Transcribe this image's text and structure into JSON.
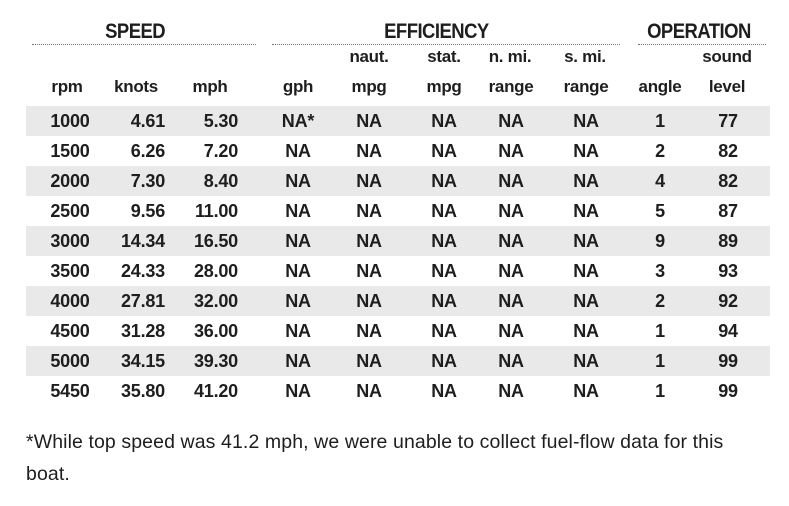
{
  "groups": {
    "speed": "SPEED",
    "efficiency": "EFFICIENCY",
    "operation": "OPERATION"
  },
  "headers": {
    "rpm": [
      "",
      "rpm"
    ],
    "knots": [
      "",
      "knots"
    ],
    "mph": [
      "",
      "mph"
    ],
    "gph": [
      "",
      "gph"
    ],
    "naut_mpg": [
      "naut.",
      "mpg"
    ],
    "stat_mpg": [
      "stat.",
      "mpg"
    ],
    "nmi_range": [
      "n. mi.",
      "range"
    ],
    "smi_range": [
      "s. mi.",
      "range"
    ],
    "angle": [
      "",
      "angle"
    ],
    "sound": [
      "sound",
      "level"
    ]
  },
  "rows": [
    [
      "1000",
      "4.61",
      "5.30",
      "NA*",
      "NA",
      "NA",
      "NA",
      "NA",
      "1",
      "77"
    ],
    [
      "1500",
      "6.26",
      "7.20",
      "NA",
      "NA",
      "NA",
      "NA",
      "NA",
      "2",
      "82"
    ],
    [
      "2000",
      "7.30",
      "8.40",
      "NA",
      "NA",
      "NA",
      "NA",
      "NA",
      "4",
      "82"
    ],
    [
      "2500",
      "9.56",
      "11.00",
      "NA",
      "NA",
      "NA",
      "NA",
      "NA",
      "5",
      "87"
    ],
    [
      "3000",
      "14.34",
      "16.50",
      "NA",
      "NA",
      "NA",
      "NA",
      "NA",
      "9",
      "89"
    ],
    [
      "3500",
      "24.33",
      "28.00",
      "NA",
      "NA",
      "NA",
      "NA",
      "NA",
      "3",
      "93"
    ],
    [
      "4000",
      "27.81",
      "32.00",
      "NA",
      "NA",
      "NA",
      "NA",
      "NA",
      "2",
      "92"
    ],
    [
      "4500",
      "31.28",
      "36.00",
      "NA",
      "NA",
      "NA",
      "NA",
      "NA",
      "1",
      "94"
    ],
    [
      "5000",
      "34.15",
      "39.30",
      "NA",
      "NA",
      "NA",
      "NA",
      "NA",
      "1",
      "99"
    ],
    [
      "5450",
      "35.80",
      "41.20",
      "NA",
      "NA",
      "NA",
      "NA",
      "NA",
      "1",
      "99"
    ]
  ],
  "footnote": "*While top speed was 41.2 mph, we were unable to collect fuel-flow data for this boat.",
  "colors": {
    "stripe": "#e9e9e9",
    "text": "#1e1e1e"
  }
}
